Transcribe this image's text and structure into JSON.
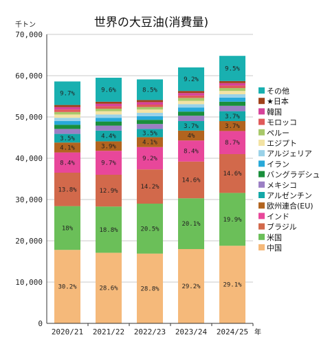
{
  "chart_data": {
    "type": "bar",
    "stacked": true,
    "title": "世界の大豆油(消費量)",
    "y_unit": "千トン",
    "x_unit": "年",
    "ylim": [
      0,
      70000
    ],
    "y_ticks": [
      "0",
      "10,000",
      "20,000",
      "30,000",
      "40,000",
      "50,000",
      "60,000",
      "70,000"
    ],
    "grid": true,
    "legend_position": "right",
    "categories": [
      "2020/21",
      "2021/22",
      "2022/23",
      "2023/24",
      "2024/25"
    ],
    "series": [
      {
        "name": "中国",
        "color": "#f5b97a",
        "values": [
          17800,
          17100,
          16900,
          18000,
          18800
        ],
        "labels": [
          "30.2%",
          "28.6%",
          "28.8%",
          "29.2%",
          "29.1%"
        ]
      },
      {
        "name": "米国",
        "color": "#6bbf59",
        "values": [
          10600,
          11200,
          12100,
          12300,
          12800
        ],
        "labels": [
          "18%",
          "18.8%",
          "20.5%",
          "20.1%",
          "19.9%"
        ]
      },
      {
        "name": "ブラジル",
        "color": "#d2694b",
        "values": [
          8100,
          7700,
          8300,
          8900,
          9400
        ],
        "labels": [
          "13.8%",
          "12.9%",
          "14.2%",
          "14.6%",
          "14.6%"
        ]
      },
      {
        "name": "インド",
        "color": "#e8479a",
        "values": [
          4900,
          5800,
          5400,
          5100,
          5600
        ],
        "labels": [
          "8.4%",
          "9.7%",
          "9.2%",
          "8.4%",
          "8.7%"
        ]
      },
      {
        "name": "欧州連合(EU)",
        "color": "#b2641f",
        "values": [
          2400,
          2300,
          2400,
          2400,
          2400
        ],
        "labels": [
          "4.1%",
          "3.9%",
          "4.1%",
          "4%",
          "3.7%"
        ]
      },
      {
        "name": "アルゼンチン",
        "color": "#14a8a8",
        "values": [
          2100,
          2600,
          2000,
          2300,
          2400
        ],
        "labels": [
          "3.5%",
          "4.4%",
          "3.5%",
          "3.7%",
          "3.7%"
        ]
      },
      {
        "name": "メキシコ",
        "color": "#9b7fc4",
        "values": [
          1200,
          1200,
          1200,
          1300,
          1300
        ],
        "labels": [
          "",
          "",
          "",
          "",
          ""
        ]
      },
      {
        "name": "バングラデシュ",
        "color": "#1a8f3c",
        "values": [
          1000,
          1000,
          1000,
          1000,
          1000
        ],
        "labels": [
          "",
          "",
          "",
          "",
          ""
        ]
      },
      {
        "name": "イラン",
        "color": "#28a9d9",
        "values": [
          900,
          900,
          900,
          1000,
          1000
        ],
        "labels": [
          "",
          "",
          "",
          "",
          ""
        ]
      },
      {
        "name": "アルジェリア",
        "color": "#9ad2e8",
        "values": [
          800,
          800,
          800,
          800,
          800
        ],
        "labels": [
          "",
          "",
          "",
          "",
          ""
        ]
      },
      {
        "name": "エジプト",
        "color": "#f3e3a4",
        "values": [
          800,
          800,
          800,
          800,
          800
        ],
        "labels": [
          "",
          "",
          "",
          "",
          ""
        ]
      },
      {
        "name": "ペルー",
        "color": "#a8c86a",
        "values": [
          600,
          600,
          600,
          700,
          700
        ],
        "labels": [
          "",
          "",
          "",
          "",
          ""
        ]
      },
      {
        "name": "モロッコ",
        "color": "#e05a5a",
        "values": [
          600,
          600,
          600,
          600,
          600
        ],
        "labels": [
          "",
          "",
          "",
          "",
          ""
        ]
      },
      {
        "name": "韓国",
        "color": "#d6439a",
        "values": [
          600,
          600,
          600,
          600,
          600
        ],
        "labels": [
          "",
          "",
          "",
          "",
          ""
        ]
      },
      {
        "name": "★日本",
        "color": "#a0421a",
        "values": [
          500,
          500,
          500,
          500,
          500
        ],
        "labels": [
          "",
          "",
          "",
          "",
          ""
        ]
      },
      {
        "name": "その他",
        "color": "#19b0b0",
        "values": [
          5700,
          5800,
          5000,
          5700,
          6100
        ],
        "labels": [
          "9.7%",
          "9.6%",
          "8.5%",
          "9.2%",
          "9.5%"
        ]
      }
    ]
  }
}
